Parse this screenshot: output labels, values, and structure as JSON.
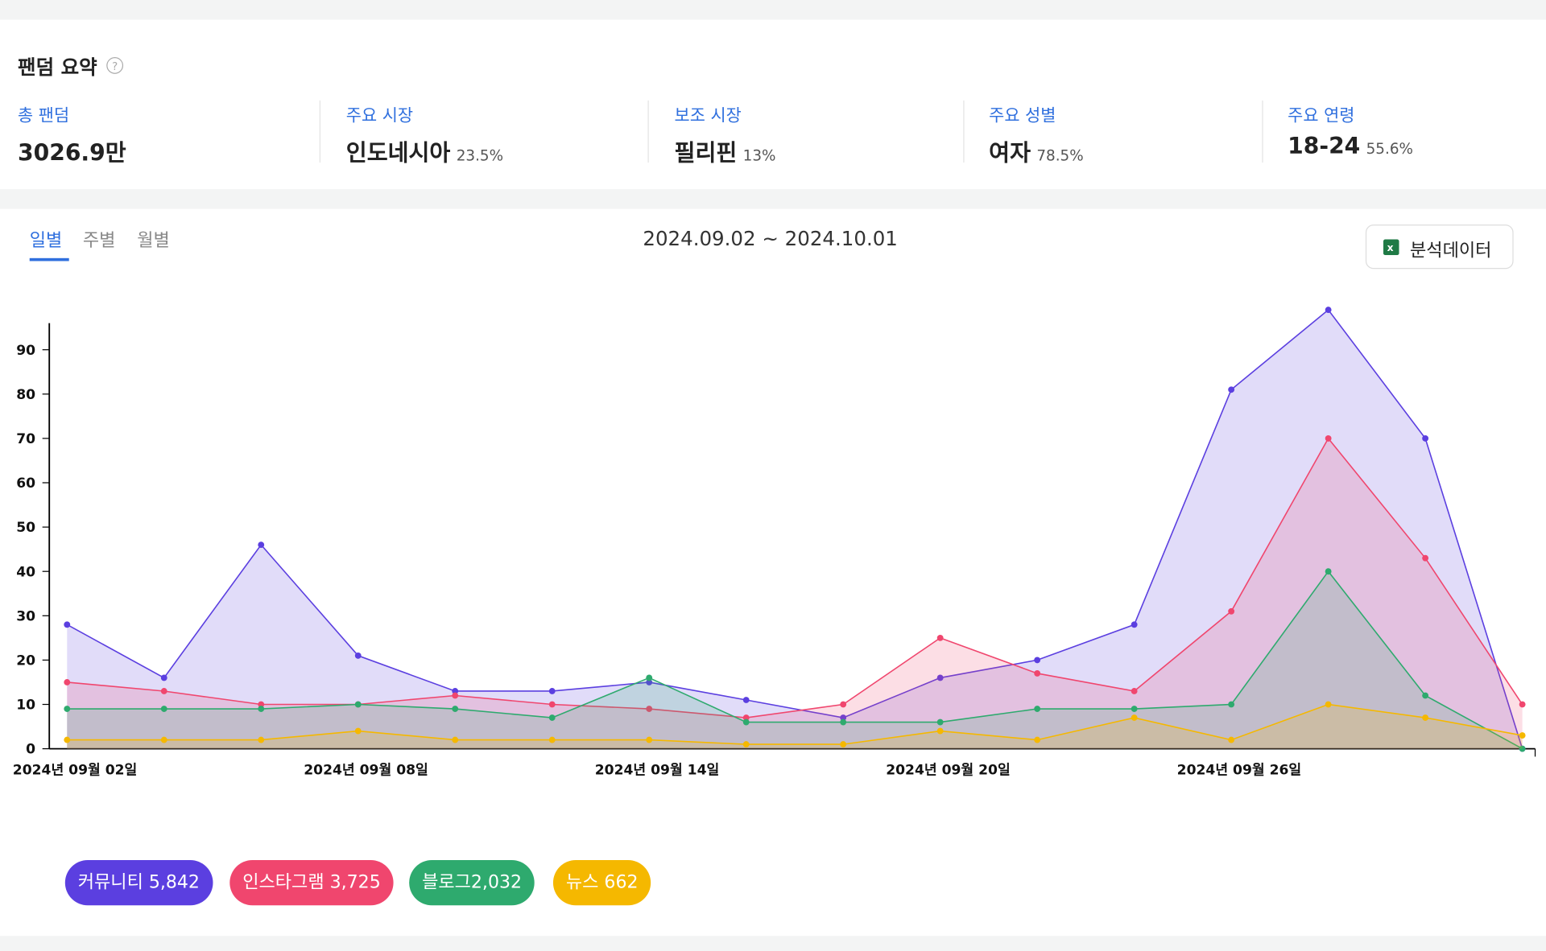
{
  "summary": {
    "title": "팬덤 요약",
    "items": [
      {
        "label": "총 팬덤",
        "value": "3026.9만"
      },
      {
        "label": "주요 시장",
        "value": "인도네시아",
        "sub": "23.5%"
      },
      {
        "label": "보조 시장",
        "value": "필리핀",
        "sub": "13%"
      },
      {
        "label": "주요 성별",
        "value": "여자",
        "sub": "78.5%"
      },
      {
        "label": "주요 연령",
        "value": "18-24",
        "sub": "55.6%"
      }
    ]
  },
  "tabs": [
    "일별",
    "주별",
    "월별"
  ],
  "date_range": "2024.09.02 ~ 2024.10.01",
  "button": "분석데이터",
  "chart_data": {
    "type": "area",
    "categories": [
      "2024년 09월 02일",
      null,
      null,
      "2024년 09월 08일",
      null,
      null,
      "2024년 09월 14일",
      null,
      null,
      "2024년 09월 20일",
      null,
      null,
      "2024년 09월 26일",
      null,
      null,
      null
    ],
    "ylim": [
      0,
      100
    ],
    "yticks": [
      0,
      10,
      20,
      30,
      40,
      50,
      60,
      70,
      80,
      90
    ],
    "series": [
      {
        "name": "커뮤니티 5,842",
        "color": "#5b3fe0",
        "values": [
          28,
          16,
          46,
          21,
          13,
          13,
          15,
          11,
          7,
          16,
          20,
          28,
          81,
          99,
          70,
          0
        ]
      },
      {
        "name": "인스타그램 3,725",
        "color": "#f0466e",
        "values": [
          15,
          13,
          10,
          10,
          12,
          10,
          9,
          7,
          10,
          25,
          17,
          13,
          31,
          70,
          43,
          10
        ]
      },
      {
        "name": "블로그2,032",
        "color": "#2eaa6e",
        "values": [
          9,
          9,
          9,
          10,
          9,
          7,
          16,
          6,
          6,
          6,
          9,
          9,
          10,
          40,
          12,
          0
        ]
      },
      {
        "name": "뉴스 662",
        "color": "#f5b800",
        "values": [
          2,
          2,
          2,
          4,
          2,
          2,
          2,
          1,
          1,
          4,
          2,
          7,
          2,
          10,
          7,
          3
        ]
      }
    ]
  }
}
